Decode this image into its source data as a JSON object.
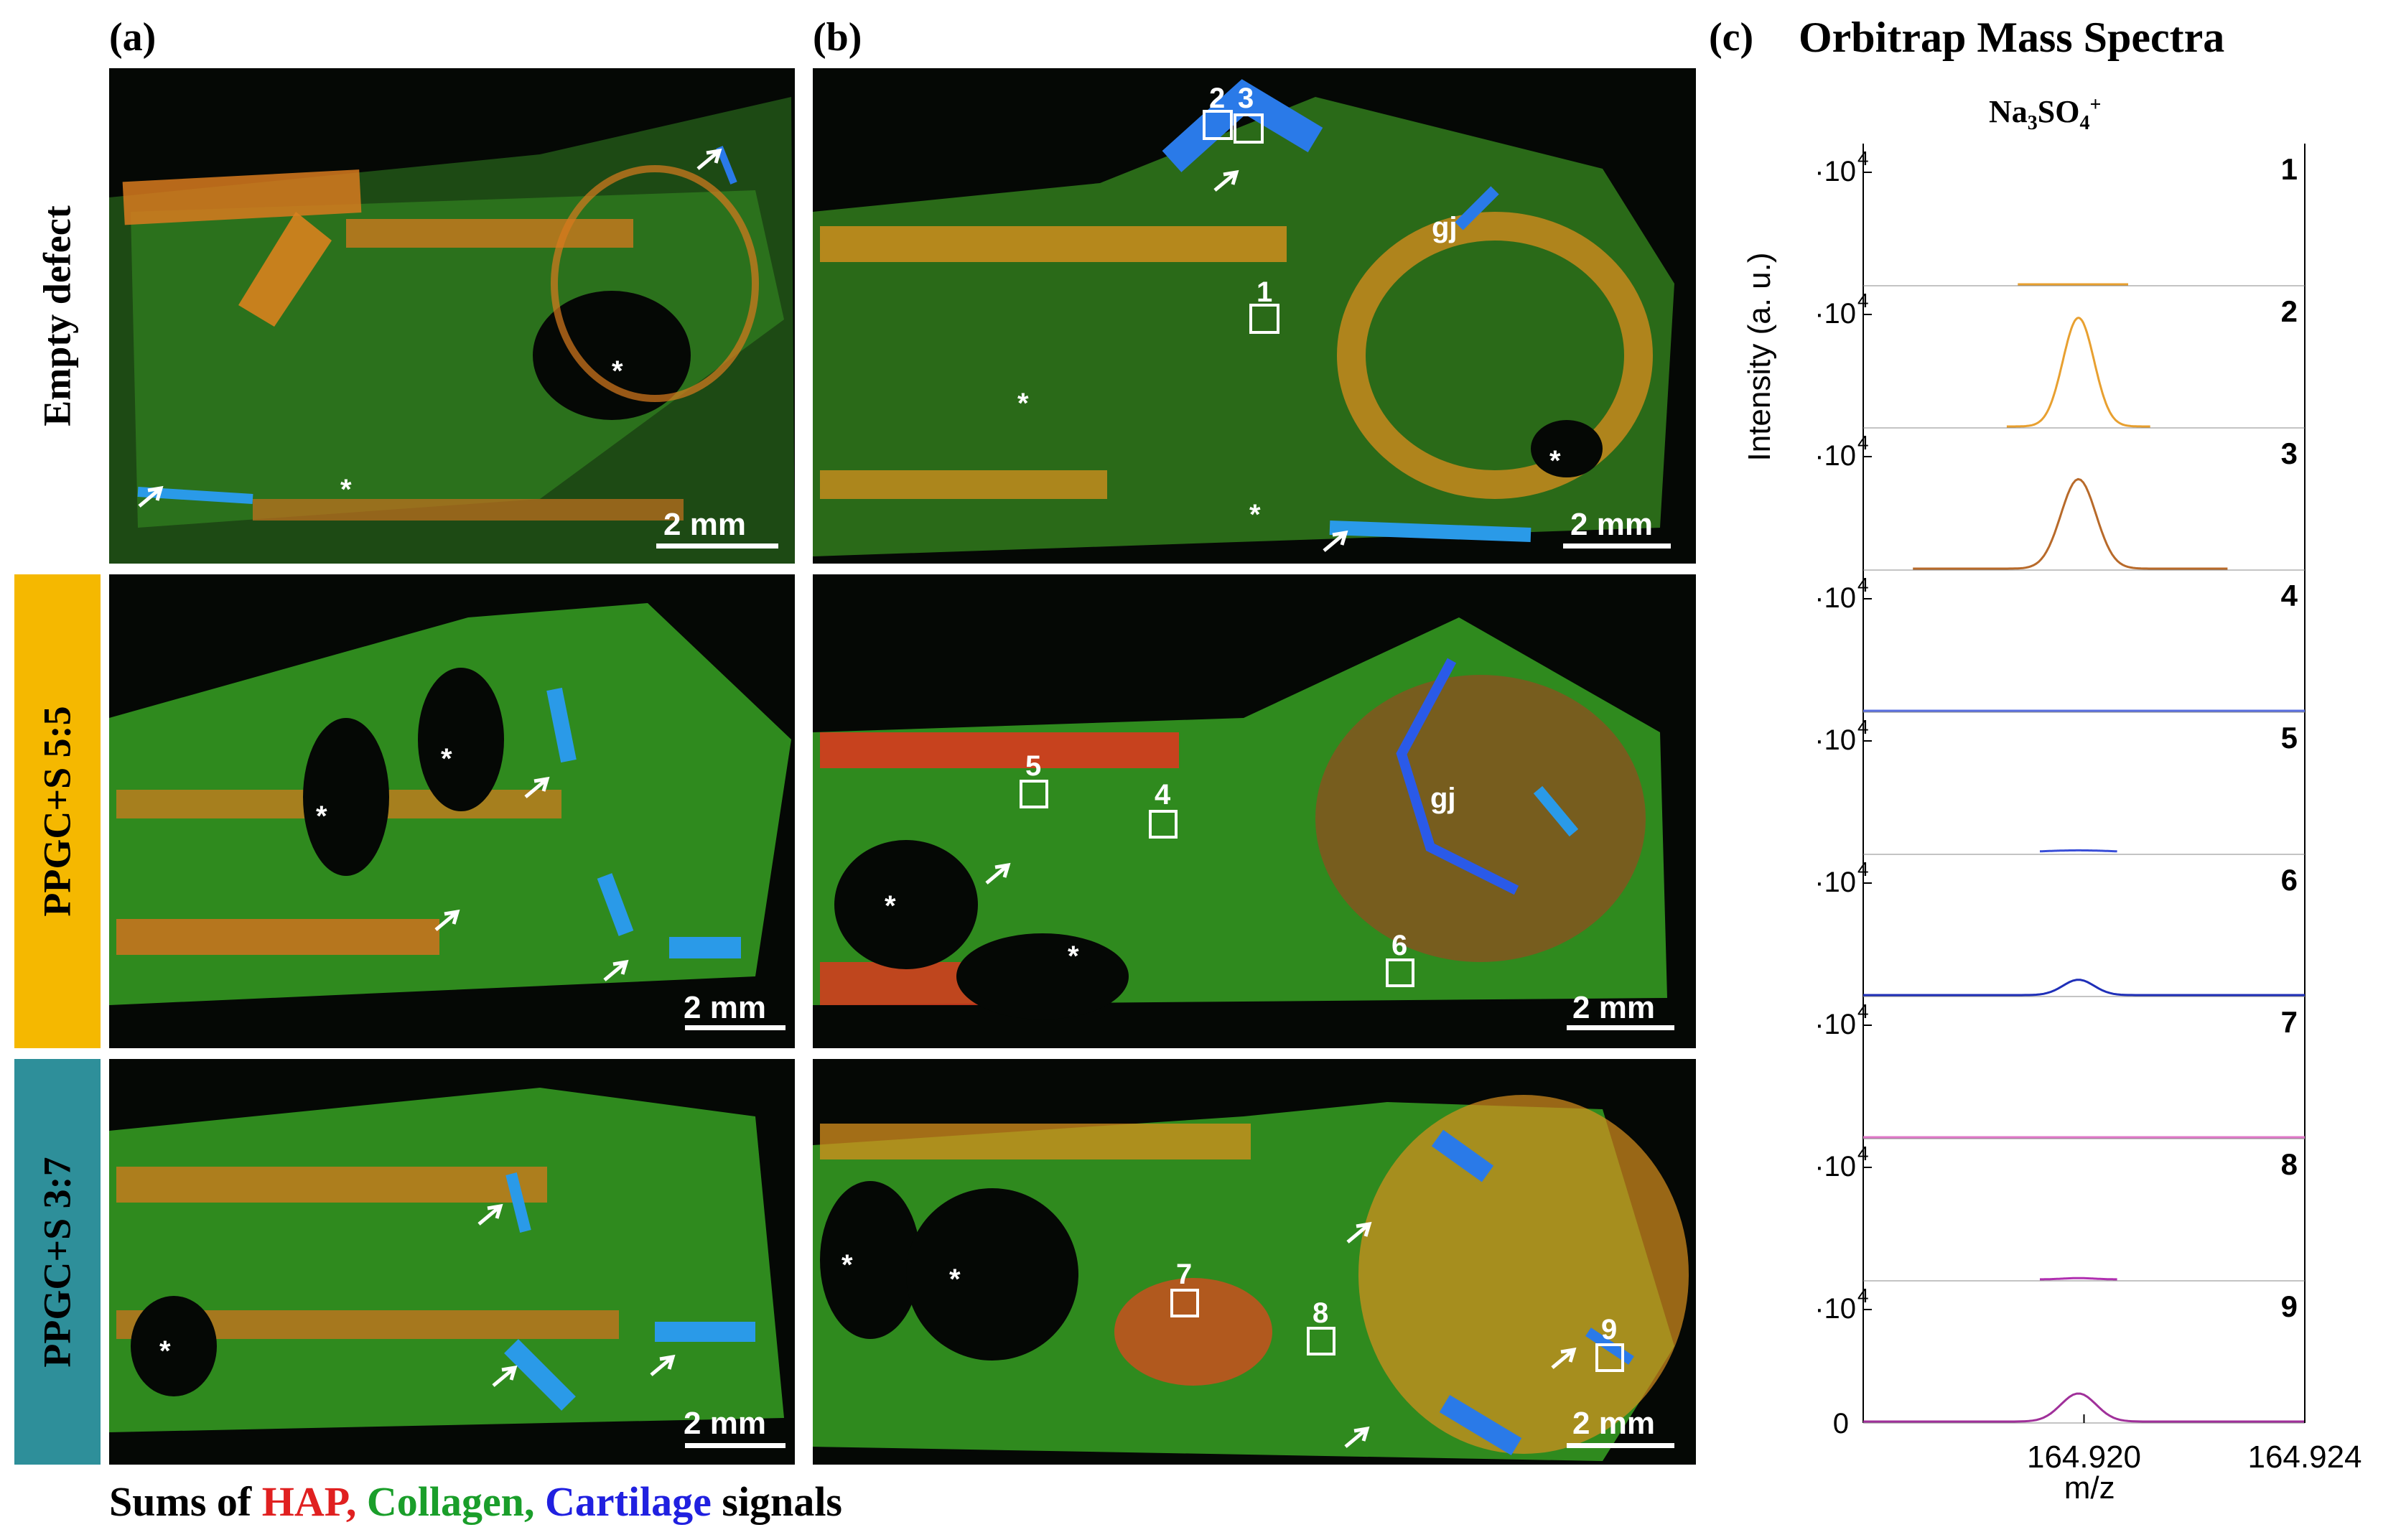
{
  "panels": {
    "a": "(a)",
    "b": "(b)",
    "c": "(c)"
  },
  "spectra_title": "Orbitrap Mass Spectra",
  "ion_label": {
    "main": "Na",
    "sub1": "3",
    "mid": "SO",
    "sub2": "4",
    "sup": "+"
  },
  "row_labels": [
    "Empty defect",
    "PPGC+S 5:5",
    "PPGC+S 3:7"
  ],
  "row_label_colors": [
    "#ffffff",
    "#f5b800",
    "#2e8f9a"
  ],
  "scalebar_text": "2 mm",
  "annotations": {
    "asterisk": "*",
    "growth_junction": "gj"
  },
  "roi_numbers": [
    "1",
    "2",
    "3",
    "4",
    "5",
    "6",
    "7",
    "8",
    "9"
  ],
  "legend": {
    "prefix": "Sums of ",
    "hap": "HAP,",
    "collagen": "Collagen,",
    "cartilage": "Cartilage",
    "suffix": " signals",
    "colors": {
      "hap": "#e02020",
      "collagen": "#1a9e2a",
      "cartilage": "#2020e0"
    }
  },
  "chart_data": {
    "type": "line",
    "title": "Orbitrap Mass Spectra",
    "ion": "Na3SO4+",
    "xlabel": "m/z",
    "ylabel": "Intensity (a. u.)",
    "x_ticks": [
      "164.920",
      "164.924"
    ],
    "y_tick_label": "·10",
    "y_tick_exp": "4",
    "y_zero_label": "0",
    "xlim": [
      164.916,
      164.924
    ],
    "series": [
      {
        "name": "1",
        "color": "#e8a030",
        "peak": 0.0,
        "x": [
          164.9188,
          164.9208
        ]
      },
      {
        "name": "2",
        "color": "#e8a030",
        "peak": 0.85,
        "center": 164.9199,
        "width": 0.0004,
        "x": [
          164.9186,
          164.9212
        ]
      },
      {
        "name": "3",
        "color": "#b86a2a",
        "peak": 0.7,
        "center": 164.9199,
        "width": 0.00045,
        "x": [
          164.9169,
          164.9226
        ]
      },
      {
        "name": "4",
        "color": "#5a6fe0",
        "peak": 0.0,
        "x": [
          164.916,
          164.924
        ]
      },
      {
        "name": "5",
        "color": "#3a4fd8",
        "peak": 0.02,
        "center": 164.9199,
        "width": 0.001,
        "x": [
          164.9192,
          164.9206
        ]
      },
      {
        "name": "6",
        "color": "#1f2fb8",
        "peak": 0.12,
        "center": 164.9199,
        "width": 0.0004,
        "x": [
          164.916,
          164.924
        ]
      },
      {
        "name": "7",
        "color": "#e078c8",
        "peak": 0.0,
        "x": [
          164.916,
          164.924
        ]
      },
      {
        "name": "8",
        "color": "#b030b0",
        "peak": 0.01,
        "center": 164.9199,
        "width": 0.0004,
        "x": [
          164.9192,
          164.9206
        ]
      },
      {
        "name": "9",
        "color": "#a0309a",
        "peak": 0.22,
        "center": 164.9199,
        "width": 0.00045,
        "x": [
          164.916,
          164.924
        ]
      }
    ]
  }
}
